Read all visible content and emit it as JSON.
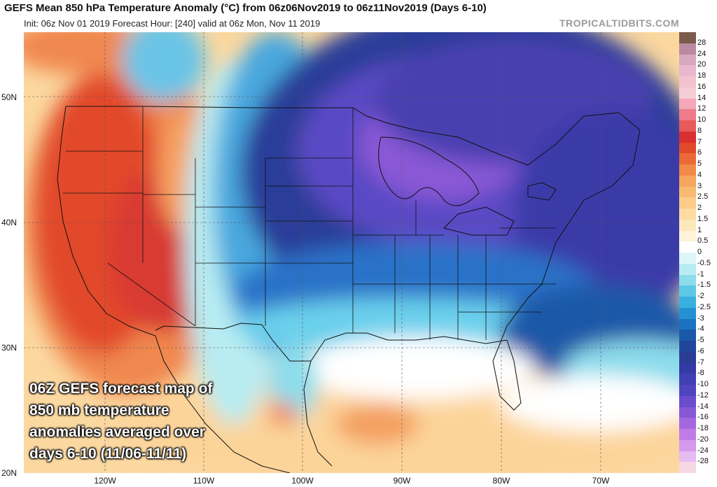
{
  "header": {
    "title": "GEFS Mean 850 hPa Temperature Anomaly (°C) from 06z06Nov2019 to 06z11Nov2019 (Days 6-10)",
    "subtitle": "Init: 06z Nov 01 2019   Forecast Hour: [240]   valid at 06z Mon, Nov 11 2019",
    "site": "TROPICALTIDBITS.COM"
  },
  "overlay_caption": [
    "06Z GEFS forecast map of",
    "850 mb temperature",
    "anomalies averaged over",
    "days 6-10 (11/06-11/11)"
  ],
  "lat_labels": [
    "50N",
    "40N",
    "30N",
    "20N"
  ],
  "lon_labels": [
    "120W",
    "110W",
    "100W",
    "90W",
    "80W",
    "70W"
  ],
  "colorbar": {
    "labels": [
      "28",
      "24",
      "20",
      "18",
      "16",
      "14",
      "12",
      "10",
      "8",
      "7",
      "6",
      "5",
      "4",
      "3",
      "2.5",
      "2",
      "1.5",
      "1",
      "0.5",
      "0",
      "-0.5",
      "-1",
      "-1.5",
      "-2",
      "-2.5",
      "-3",
      "-4",
      "-5",
      "-6",
      "-7",
      "-8",
      "-10",
      "-12",
      "-14",
      "-16",
      "-18",
      "-20",
      "-24",
      "-28"
    ],
    "colors": [
      "#7a5a4a",
      "#b98aa0",
      "#d8a8c0",
      "#e8b8cc",
      "#f2c2cf",
      "#f6ccd6",
      "#f4a8b8",
      "#ee7a8a",
      "#e85a5a",
      "#d83030",
      "#e24a2a",
      "#ec6a38",
      "#f28a48",
      "#f6a55c",
      "#f8ba72",
      "#fbcc8a",
      "#fcdca2",
      "#fde8bc",
      "#fff2d8",
      "#ffffff",
      "#dff6f8",
      "#b8ecf2",
      "#8cdcec",
      "#5cc8e6",
      "#38b0e0",
      "#2492d2",
      "#1a72c0",
      "#1a58a8",
      "#22469c",
      "#2a3e98",
      "#343aa4",
      "#4040b4",
      "#5044c0",
      "#6a4ccc",
      "#8658d6",
      "#a468de",
      "#c07ce6",
      "#d49aec",
      "#e6bcf2"
    ]
  }
}
